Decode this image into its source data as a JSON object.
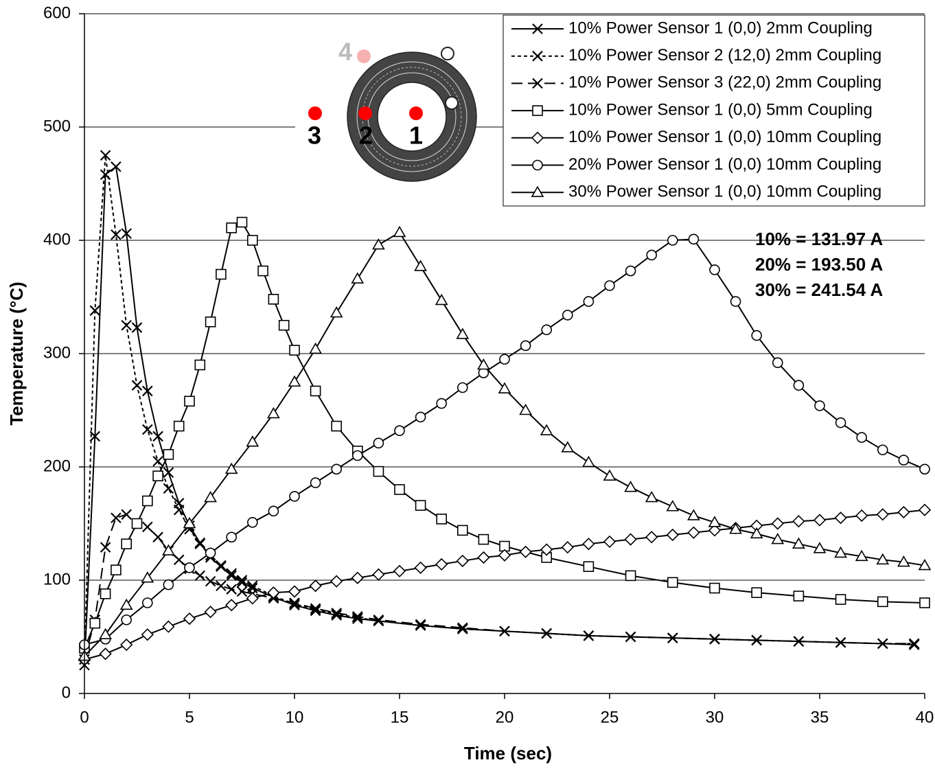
{
  "chart_data": {
    "type": "line",
    "xlabel": "Time (sec)",
    "ylabel": "Temperature (°C)",
    "xlim": [
      0,
      40
    ],
    "ylim": [
      0,
      600
    ],
    "xticks": [
      0,
      5,
      10,
      15,
      20,
      25,
      30,
      35,
      40
    ],
    "yticks": [
      0,
      100,
      200,
      300,
      400,
      500,
      600
    ],
    "grid": true,
    "legend": "top-right",
    "annotations": [
      "10% = 131.97 A",
      "20% = 193.50 A",
      "30% = 241.54 A"
    ],
    "inset_labels": [
      "1",
      "2",
      "3",
      "4"
    ],
    "series": [
      {
        "name": "10% Power Sensor 1 (0,0) 2mm Coupling",
        "color": "#000000",
        "marker": "x",
        "dash": "none",
        "x": [
          0,
          0.5,
          1,
          1.5,
          2,
          2.5,
          3,
          3.5,
          4,
          4.5,
          5,
          5.5,
          6,
          6.5,
          7,
          7.5,
          8,
          9,
          10,
          11,
          12,
          13,
          14,
          16,
          18,
          20,
          22,
          24,
          26,
          28,
          30,
          32,
          34,
          36,
          38,
          39.5
        ],
        "values": [
          25,
          227,
          458,
          465,
          406,
          323,
          267,
          227,
          195,
          168,
          148,
          133,
          120,
          112,
          104,
          98,
          93,
          85,
          78,
          73,
          69,
          66,
          64,
          60,
          57,
          55,
          53,
          51,
          50,
          49,
          48,
          47,
          46,
          45,
          44,
          43
        ]
      },
      {
        "name": "10% Power Sensor 2 (12,0) 2mm Coupling",
        "color": "#000000",
        "marker": "x",
        "dash": "5,4",
        "x": [
          0,
          0.5,
          1,
          1.5,
          2,
          2.5,
          3,
          3.5,
          4,
          4.5,
          5,
          5.5,
          6,
          6.5,
          7,
          7.5,
          8,
          9,
          10,
          11,
          12,
          13,
          14,
          16,
          18,
          20,
          22,
          24,
          26,
          28,
          30,
          32,
          34,
          36,
          38,
          39.5
        ],
        "values": [
          30,
          338,
          475,
          405,
          325,
          272,
          233,
          205,
          181,
          162,
          145,
          132,
          122,
          113,
          106,
          100,
          95,
          86,
          79,
          74,
          70,
          67,
          64,
          60,
          57,
          55,
          53,
          51,
          50,
          49,
          48,
          47,
          46,
          45,
          44,
          44
        ]
      },
      {
        "name": "10% Power Sensor 3 (22,0) 2mm Coupling",
        "color": "#000000",
        "marker": "x",
        "dash": "16,8",
        "x": [
          0,
          0.5,
          1,
          1.5,
          2,
          2.5,
          3,
          3.5,
          4,
          4.5,
          5,
          5.5,
          6,
          6.5,
          7,
          7.5,
          8,
          9,
          10,
          11,
          12,
          13,
          14,
          16,
          18,
          20,
          22,
          24,
          26,
          28,
          30,
          32,
          34,
          36,
          38,
          39.5
        ],
        "values": [
          30,
          65,
          129,
          155,
          158,
          150,
          147,
          138,
          126,
          118,
          110,
          104,
          99,
          95,
          92,
          90,
          88,
          84,
          80,
          75,
          71,
          68,
          65,
          61,
          58,
          55,
          53,
          51,
          50,
          49,
          48,
          47,
          46,
          45,
          44,
          44
        ]
      },
      {
        "name": "10% Power Sensor 1 (0,0) 5mm Coupling",
        "color": "#000000",
        "marker": "square",
        "dash": "none",
        "x": [
          0,
          0.5,
          1,
          1.5,
          2,
          2.5,
          3,
          3.5,
          4,
          4.5,
          5,
          5.5,
          6,
          6.5,
          7,
          7.5,
          8,
          8.5,
          9,
          9.5,
          10,
          11,
          12,
          13,
          14,
          15,
          16,
          17,
          18,
          19,
          20,
          22,
          24,
          26,
          28,
          30,
          32,
          34,
          36,
          38,
          40
        ],
        "values": [
          40,
          62,
          88,
          109,
          132,
          150,
          170,
          192,
          211,
          236,
          258,
          290,
          328,
          370,
          411,
          416,
          400,
          373,
          348,
          325,
          303,
          267,
          236,
          214,
          196,
          180,
          166,
          154,
          144,
          136,
          130,
          120,
          112,
          104,
          98,
          93,
          89,
          86,
          83,
          81,
          80
        ]
      },
      {
        "name": "10% Power Sensor 1 (0,0) 10mm Coupling",
        "color": "#000000",
        "marker": "diamond",
        "dash": "none",
        "x": [
          0,
          1,
          2,
          3,
          4,
          5,
          6,
          7,
          8,
          9,
          10,
          11,
          12,
          13,
          14,
          15,
          16,
          17,
          18,
          19,
          20,
          21,
          22,
          23,
          24,
          25,
          26,
          27,
          28,
          29,
          30,
          31,
          32,
          33,
          34,
          35,
          36,
          37,
          38,
          39,
          40
        ],
        "values": [
          30,
          35,
          43,
          52,
          59,
          66,
          72,
          78,
          84,
          89,
          90,
          95,
          99,
          102,
          105,
          108,
          111,
          114,
          117,
          120,
          122,
          125,
          127,
          129,
          132,
          134,
          136,
          138,
          140,
          142,
          144,
          146,
          148,
          150,
          152,
          153,
          155,
          157,
          158,
          160,
          162
        ]
      },
      {
        "name": "20% Power Sensor 1 (0,0) 10mm Coupling",
        "color": "#000000",
        "marker": "circle",
        "dash": "none",
        "x": [
          0,
          1,
          2,
          3,
          4,
          5,
          6,
          7,
          8,
          9,
          10,
          11,
          12,
          13,
          14,
          15,
          16,
          17,
          18,
          19,
          20,
          21,
          22,
          23,
          24,
          25,
          26,
          27,
          28,
          29,
          30,
          31,
          32,
          33,
          34,
          35,
          36,
          37,
          38,
          39,
          40
        ],
        "values": [
          43,
          48,
          65,
          80,
          96,
          111,
          124,
          138,
          151,
          161,
          174,
          186,
          198,
          210,
          221,
          232,
          244,
          256,
          270,
          283,
          295,
          307,
          321,
          334,
          346,
          360,
          373,
          387,
          400,
          401,
          374,
          346,
          316,
          292,
          272,
          254,
          239,
          226,
          215,
          206,
          198
        ]
      },
      {
        "name": "30% Power Sensor 1 (0,0) 10mm Coupling",
        "color": "#000000",
        "marker": "triangle",
        "dash": "none",
        "x": [
          0,
          1,
          2,
          3,
          4,
          5,
          6,
          7,
          8,
          9,
          10,
          11,
          12,
          13,
          14,
          15,
          16,
          17,
          18,
          19,
          20,
          21,
          22,
          23,
          24,
          25,
          26,
          27,
          28,
          29,
          30,
          31,
          32,
          33,
          34,
          35,
          36,
          37,
          38,
          39,
          40
        ],
        "values": [
          33,
          52,
          78,
          102,
          126,
          150,
          173,
          198,
          222,
          247,
          275,
          304,
          336,
          366,
          396,
          407,
          377,
          347,
          317,
          290,
          269,
          250,
          232,
          217,
          204,
          192,
          182,
          173,
          165,
          157,
          151,
          145,
          141,
          136,
          132,
          128,
          124,
          121,
          118,
          116,
          113
        ]
      }
    ]
  }
}
